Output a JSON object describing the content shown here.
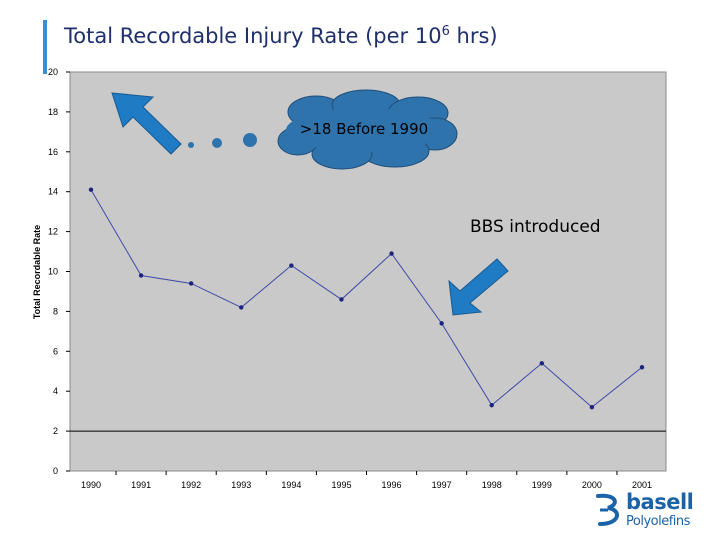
{
  "title": {
    "main": "Total Recordable Injury Rate (per 10",
    "sup": "6",
    "tail": " hrs)"
  },
  "chart_data": {
    "type": "line",
    "title": "Total Recordable Injury Rate (per 10^6 hrs)",
    "xlabel": "",
    "ylabel": "Total Recordable Rate",
    "categories": [
      "1990",
      "1991",
      "1992",
      "1993",
      "1994",
      "1995",
      "1996",
      "1997",
      "1998",
      "1999",
      "2000",
      "2001"
    ],
    "values": [
      14.1,
      9.8,
      9.4,
      8.2,
      10.3,
      8.6,
      10.9,
      7.4,
      3.3,
      5.4,
      3.2,
      5.2
    ],
    "ylim": [
      0,
      20
    ],
    "yticks": [
      "0",
      "2",
      "4",
      "6",
      "8",
      "10",
      "12",
      "14",
      "16",
      "18",
      "20"
    ],
    "grid": false,
    "reference_line": 2,
    "colors": {
      "plot_background": "#c9c9c9",
      "line": "#3f4aa8",
      "marker": "#1a237e",
      "callout_fill": "#2f73ad",
      "arrow_fill": "#1f7bc4"
    },
    "annotations": {
      "before": ">18 Before 1990",
      "bbs": "BBS introduced"
    }
  },
  "logo": {
    "word": "basell",
    "sub": "Polyolefins",
    "color": "#1b63a8"
  }
}
